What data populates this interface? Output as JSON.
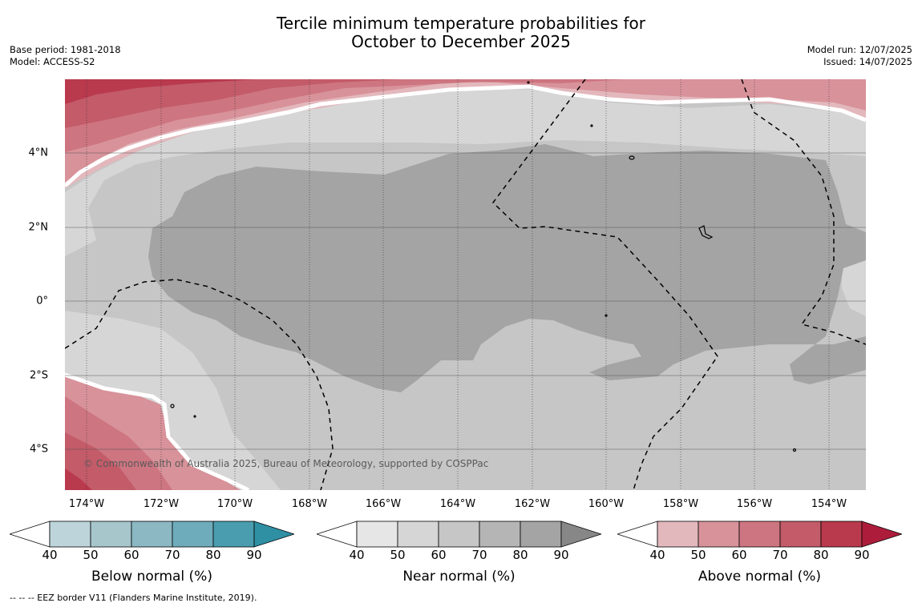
{
  "title": {
    "line1": "Tercile minimum temperature probabilities for",
    "line2": "October to December 2025"
  },
  "meta": {
    "base_period": "Base period: 1981-2018",
    "model": "Model: ACCESS-S2",
    "model_run": "Model run: 12/07/2025",
    "issued": "Issued: 14/07/2025"
  },
  "map": {
    "lon_labels": [
      "174°W",
      "172°W",
      "170°W",
      "168°W",
      "166°W",
      "164°W",
      "162°W",
      "160°W",
      "158°W",
      "156°W",
      "154°W"
    ],
    "lat_labels": [
      "4°N",
      "2°N",
      "0°",
      "2°S",
      "4°S"
    ],
    "copyright": "© Commonwealth of Australia 2025, Bureau of Meteorology, supported by COSPPac"
  },
  "colorbars": [
    {
      "label": "Below normal (%)",
      "ticks": [
        "40",
        "50",
        "60",
        "70",
        "80",
        "90"
      ],
      "colors": [
        "#ffffff",
        "#bdd4db",
        "#a6c6cc",
        "#8bb8c3",
        "#6facbb",
        "#4a9dae",
        "#2f8fa3"
      ]
    },
    {
      "label": "Near normal (%)",
      "ticks": [
        "40",
        "50",
        "60",
        "70",
        "80",
        "90"
      ],
      "colors": [
        "#ffffff",
        "#e6e6e6",
        "#d6d6d6",
        "#c6c6c6",
        "#b5b5b5",
        "#a4a4a4",
        "#878787"
      ]
    },
    {
      "label": "Above normal (%)",
      "ticks": [
        "40",
        "50",
        "60",
        "70",
        "80",
        "90"
      ],
      "colors": [
        "#ffffff",
        "#e3b8bd",
        "#d8929a",
        "#cd7580",
        "#c35b69",
        "#b9394d",
        "#ad1d3b"
      ]
    }
  ],
  "footer": "--  --  -- EEZ border V11 (Flanders Marine Institute, 2019)."
}
